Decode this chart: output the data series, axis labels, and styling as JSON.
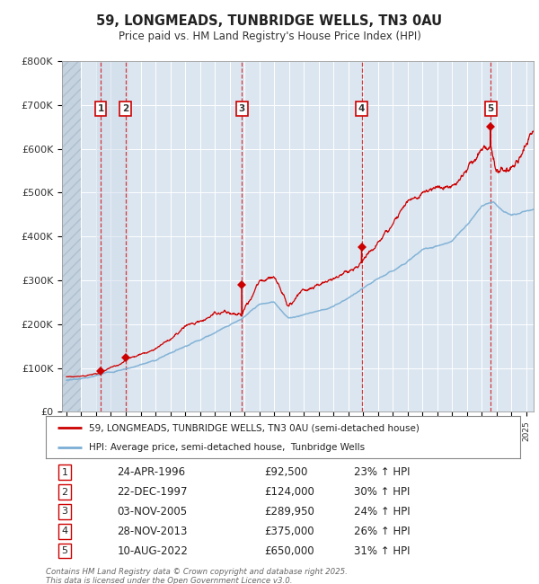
{
  "title": "59, LONGMEADS, TUNBRIDGE WELLS, TN3 0AU",
  "subtitle": "Price paid vs. HM Land Registry's House Price Index (HPI)",
  "ylim": [
    0,
    800000
  ],
  "yticks": [
    0,
    100000,
    200000,
    300000,
    400000,
    500000,
    600000,
    700000,
    800000
  ],
  "ytick_labels": [
    "£0",
    "£100K",
    "£200K",
    "£300K",
    "£400K",
    "£500K",
    "£600K",
    "£700K",
    "£800K"
  ],
  "xlim": [
    1993.7,
    2025.5
  ],
  "sales": [
    {
      "num": 1,
      "year": 1996.32,
      "price": 92500,
      "label": "24-APR-1996",
      "pct": "23%"
    },
    {
      "num": 2,
      "year": 1997.98,
      "price": 124000,
      "label": "22-DEC-1997",
      "pct": "30%"
    },
    {
      "num": 3,
      "year": 2005.84,
      "price": 289950,
      "label": "03-NOV-2005",
      "pct": "24%"
    },
    {
      "num": 4,
      "year": 2013.91,
      "price": 375000,
      "label": "28-NOV-2013",
      "pct": "26%"
    },
    {
      "num": 5,
      "year": 2022.61,
      "price": 650000,
      "label": "10-AUG-2022",
      "pct": "31%"
    }
  ],
  "red_color": "#cc0000",
  "blue_color": "#7aaed4",
  "background_color": "#ffffff",
  "plot_bg_color": "#dce6f1",
  "grid_color": "#ffffff",
  "footer": "Contains HM Land Registry data © Crown copyright and database right 2025.\nThis data is licensed under the Open Government Licence v3.0.",
  "legend_line1": "59, LONGMEADS, TUNBRIDGE WELLS, TN3 0AU (semi-detached house)",
  "legend_line2": "HPI: Average price, semi-detached house,  Tunbridge Wells"
}
